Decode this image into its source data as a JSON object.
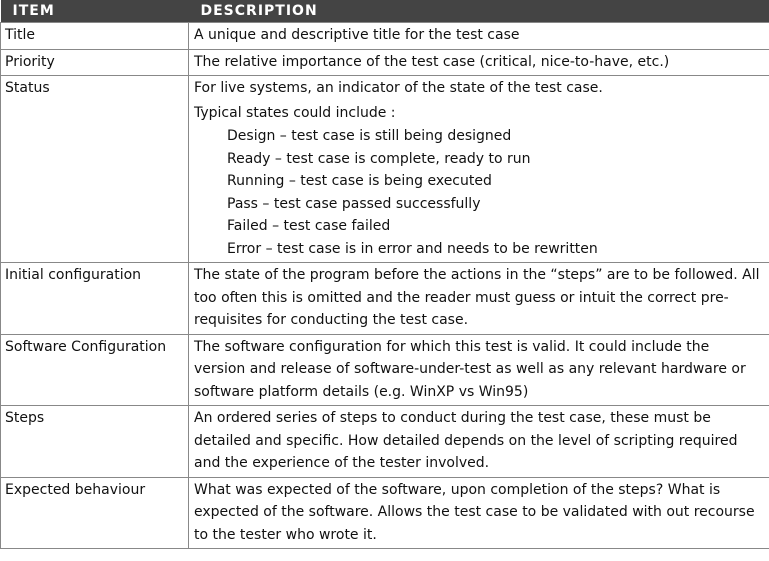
{
  "table": {
    "headers": {
      "item": "ITEM",
      "description": "DESCRIPTION"
    },
    "rows": [
      {
        "item": "Title",
        "description": "A unique and descriptive title for the test case"
      },
      {
        "item": "Priority",
        "description": "The relative importance of the test case (critical, nice-to-have, etc.)"
      },
      {
        "item": "Status",
        "description": "For live systems, an indicator of the state of the test case.",
        "sub_intro": "Typical states could include :",
        "states": [
          "Design – test case is still being designed",
          "Ready – test case is complete, ready to run",
          "Running – test case is being executed",
          "Pass – test case passed successfully",
          "Failed – test case failed",
          "Error – test case is in error and needs to be rewritten"
        ]
      },
      {
        "item": "Initial configuration",
        "description": "The state of the program before the actions in the “steps” are to be followed. All too often this is omitted and the reader must guess or intuit the correct pre-requisites for conducting the test case."
      },
      {
        "item": "Software Configuration",
        "description": "The software configuration for which this test is valid. It could include the version and release of software-under-test as well as any relevant hardware or software platform details (e.g. WinXP vs Win95)"
      },
      {
        "item": "Steps",
        "description": "An ordered series of steps to conduct during the test case, these must be detailed and specific. How detailed depends on the level of scripting required and the experience of the tester involved."
      },
      {
        "item": "Expected behaviour",
        "description": "What was expected of the software, upon completion of the steps? What is expected of the software. Allows the test case to be validated with out recourse to the tester who wrote it."
      }
    ]
  }
}
